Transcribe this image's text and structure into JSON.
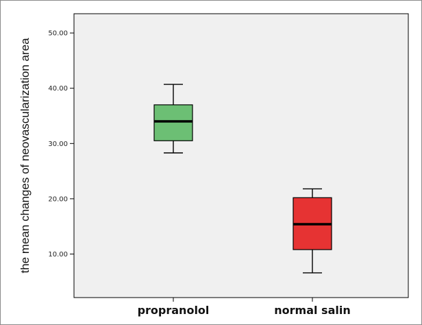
{
  "chart_data": {
    "type": "boxplot",
    "title": "",
    "xlabel": "",
    "ylabel": "the mean changes of neovascularization area",
    "ylim": [
      0,
      55
    ],
    "yticks": [
      10,
      20,
      30,
      40,
      50
    ],
    "ytick_labels": [
      "10.00",
      "20.00",
      "30.00",
      "40.00",
      "50.00"
    ],
    "categories": [
      "propranolol",
      "normal salin"
    ],
    "boxes": [
      {
        "category": "propranolol",
        "min": 28.3,
        "q1": 30.5,
        "median": 34.0,
        "q3": 37.0,
        "max": 40.7,
        "color": "#6cbf74"
      },
      {
        "category": "normal salin",
        "min": 6.6,
        "q1": 10.8,
        "median": 15.4,
        "q3": 20.2,
        "max": 21.8,
        "color": "#e63333"
      }
    ],
    "grid": false,
    "plot_background": "#f0f0f0"
  }
}
